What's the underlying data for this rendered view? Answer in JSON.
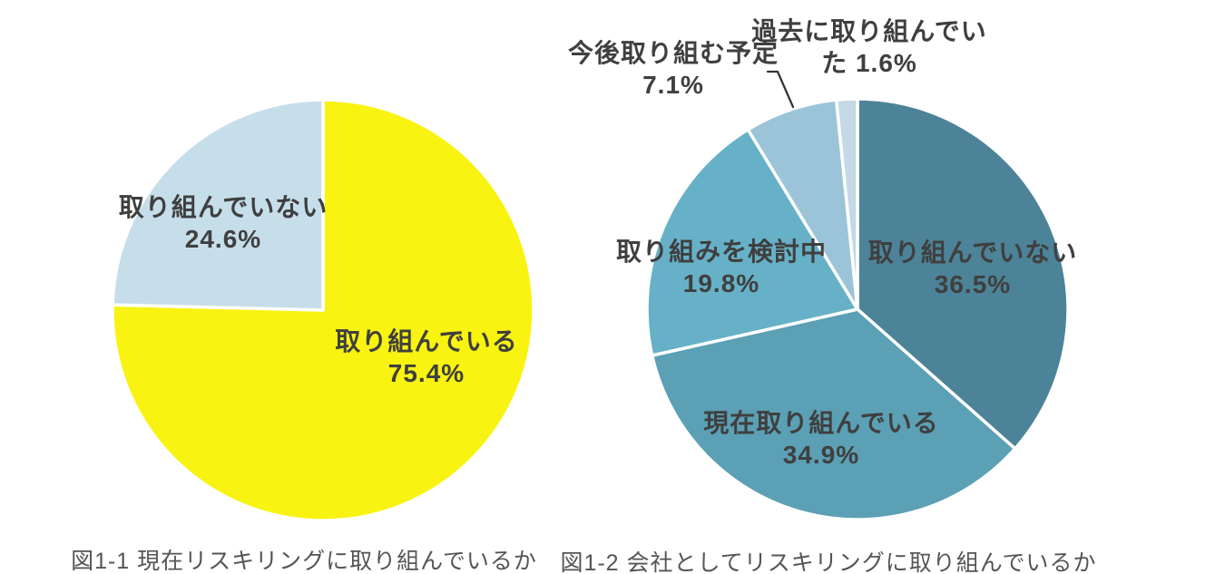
{
  "chart_data": [
    {
      "type": "pie",
      "title": "図1-1 現在リスキリングに取り組んでいるか",
      "unit": "%",
      "start_angle": 0,
      "direction": "clockwise",
      "categories": [
        "取り組んでいる",
        "取り組んでいない"
      ],
      "values": [
        75.4,
        24.6
      ],
      "colors": [
        "#F8F311",
        "#C6DEEA"
      ],
      "legend": "none",
      "annotations": [
        {
          "name": "label-not-working",
          "lines": [
            "取り組んでいない",
            "24.6%"
          ]
        },
        {
          "name": "label-working",
          "lines": [
            "取り組んでいる",
            "75.4%"
          ]
        }
      ]
    },
    {
      "type": "pie",
      "title": "図1-2 会社としてリスキリングに取り組んでいるか",
      "unit": "%",
      "start_angle": 0,
      "direction": "clockwise",
      "categories": [
        "取り組んでいない",
        "現在取り組んでいる",
        "取り組みを検討中",
        "今後取り組む予定",
        "過去に取り組んでいた"
      ],
      "values": [
        36.5,
        34.9,
        19.8,
        7.1,
        1.6
      ],
      "colors": [
        "#4C8398",
        "#5BA0B5",
        "#66B1C7",
        "#9BC4D8",
        "#C3D9E5"
      ],
      "legend": "none",
      "annotations": [
        {
          "name": "label-not-working",
          "lines": [
            "取り組んでいない",
            "36.5%"
          ]
        },
        {
          "name": "label-currently-working",
          "lines": [
            "現在取り組んでいる",
            "34.9%"
          ]
        },
        {
          "name": "label-considering",
          "lines": [
            "取り組みを検討中",
            "19.8%"
          ]
        },
        {
          "name": "label-planned",
          "lines": [
            "今後取り組む予定",
            "7.1%"
          ]
        },
        {
          "name": "label-past",
          "lines": [
            "過去に取り組んでい",
            "た 1.6%"
          ]
        }
      ]
    }
  ],
  "style": {
    "slice_border_color": "#FFFFFF",
    "label_text_color": "#3F3F3F",
    "caption_text_color": "#555555",
    "leader_line_color": "#333333"
  }
}
